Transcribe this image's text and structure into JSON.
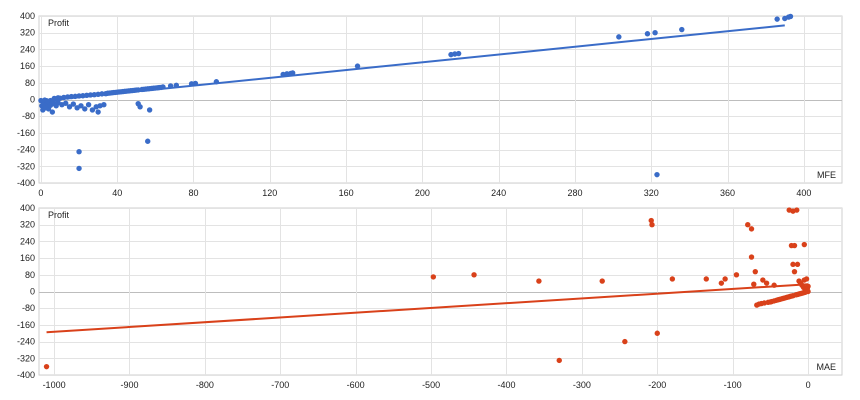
{
  "chart_data": [
    {
      "type": "scatter",
      "xlabel": "MFE",
      "ylabel": "Profit",
      "xlim": [
        -1,
        420
      ],
      "ylim": [
        -400,
        400
      ],
      "xticks": [
        0,
        40,
        80,
        120,
        160,
        200,
        240,
        280,
        320,
        360,
        400
      ],
      "yticks": [
        -400,
        -320,
        -240,
        -160,
        -80,
        0,
        80,
        160,
        240,
        320,
        400
      ],
      "grid": true,
      "point_color": "#3a6cc8",
      "line_color": "#3a6cc8",
      "trendline": {
        "x": [
          0,
          390
        ],
        "y": [
          -8,
          355
        ]
      },
      "points": [
        {
          "x": 0,
          "y": -5
        },
        {
          "x": 0.5,
          "y": -30
        },
        {
          "x": 1,
          "y": -50
        },
        {
          "x": 1,
          "y": -8
        },
        {
          "x": 1.5,
          "y": -15
        },
        {
          "x": 2,
          "y": -25
        },
        {
          "x": 2,
          "y": -3
        },
        {
          "x": 2.5,
          "y": -40
        },
        {
          "x": 3,
          "y": -6
        },
        {
          "x": 3,
          "y": -35
        },
        {
          "x": 3.5,
          "y": -20
        },
        {
          "x": 4,
          "y": -10
        },
        {
          "x": 4,
          "y": -45
        },
        {
          "x": 5,
          "y": -5
        },
        {
          "x": 5,
          "y": -28
        },
        {
          "x": 6,
          "y": -12
        },
        {
          "x": 6,
          "y": -60
        },
        {
          "x": 7,
          "y": -20
        },
        {
          "x": 7,
          "y": 5
        },
        {
          "x": 8,
          "y": 3
        },
        {
          "x": 8,
          "y": -30
        },
        {
          "x": 9,
          "y": 8
        },
        {
          "x": 9,
          "y": -15
        },
        {
          "x": 10,
          "y": 6
        },
        {
          "x": 11,
          "y": -25
        },
        {
          "x": 12,
          "y": 10
        },
        {
          "x": 13,
          "y": -18
        },
        {
          "x": 14,
          "y": 12
        },
        {
          "x": 15,
          "y": -35
        },
        {
          "x": 16,
          "y": 14
        },
        {
          "x": 17,
          "y": -22
        },
        {
          "x": 18,
          "y": 15
        },
        {
          "x": 19,
          "y": -40
        },
        {
          "x": 20,
          "y": 17
        },
        {
          "x": 20,
          "y": -250
        },
        {
          "x": 20,
          "y": -330
        },
        {
          "x": 21,
          "y": -30
        },
        {
          "x": 22,
          "y": 18
        },
        {
          "x": 23,
          "y": -45
        },
        {
          "x": 24,
          "y": 20
        },
        {
          "x": 25,
          "y": -25
        },
        {
          "x": 26,
          "y": 22
        },
        {
          "x": 27,
          "y": -50
        },
        {
          "x": 28,
          "y": 23
        },
        {
          "x": 29,
          "y": -35
        },
        {
          "x": 30,
          "y": 25
        },
        {
          "x": 30,
          "y": -60
        },
        {
          "x": 31,
          "y": -30
        },
        {
          "x": 32,
          "y": 27
        },
        {
          "x": 33,
          "y": -25
        },
        {
          "x": 34,
          "y": 28
        },
        {
          "x": 35,
          "y": 30
        },
        {
          "x": 36,
          "y": 31
        },
        {
          "x": 37,
          "y": 32
        },
        {
          "x": 38,
          "y": 33
        },
        {
          "x": 39,
          "y": 34
        },
        {
          "x": 40,
          "y": 35
        },
        {
          "x": 41,
          "y": 36
        },
        {
          "x": 42,
          "y": 37
        },
        {
          "x": 43,
          "y": 38
        },
        {
          "x": 44,
          "y": 39
        },
        {
          "x": 45,
          "y": 40
        },
        {
          "x": 46,
          "y": 41
        },
        {
          "x": 47,
          "y": 42
        },
        {
          "x": 48,
          "y": 43
        },
        {
          "x": 49,
          "y": 44
        },
        {
          "x": 50,
          "y": 45
        },
        {
          "x": 51,
          "y": 46
        },
        {
          "x": 51,
          "y": -20
        },
        {
          "x": 52,
          "y": -35
        },
        {
          "x": 53,
          "y": 48
        },
        {
          "x": 54,
          "y": 49
        },
        {
          "x": 55,
          "y": 50
        },
        {
          "x": 56,
          "y": 51
        },
        {
          "x": 56,
          "y": -200
        },
        {
          "x": 57,
          "y": -50
        },
        {
          "x": 57,
          "y": 52
        },
        {
          "x": 58,
          "y": 53
        },
        {
          "x": 59,
          "y": 54
        },
        {
          "x": 60,
          "y": 55
        },
        {
          "x": 61,
          "y": 56
        },
        {
          "x": 62,
          "y": 57
        },
        {
          "x": 63,
          "y": 58
        },
        {
          "x": 64,
          "y": 60
        },
        {
          "x": 68,
          "y": 65
        },
        {
          "x": 71,
          "y": 68
        },
        {
          "x": 79,
          "y": 75
        },
        {
          "x": 81,
          "y": 77
        },
        {
          "x": 92,
          "y": 85
        },
        {
          "x": 127,
          "y": 120
        },
        {
          "x": 129,
          "y": 123
        },
        {
          "x": 131,
          "y": 125
        },
        {
          "x": 132,
          "y": 127
        },
        {
          "x": 166,
          "y": 160
        },
        {
          "x": 215,
          "y": 215
        },
        {
          "x": 217,
          "y": 218
        },
        {
          "x": 219,
          "y": 220
        },
        {
          "x": 303,
          "y": 300
        },
        {
          "x": 318,
          "y": 315
        },
        {
          "x": 322,
          "y": 320
        },
        {
          "x": 323,
          "y": -360
        },
        {
          "x": 336,
          "y": 335
        },
        {
          "x": 386,
          "y": 385
        },
        {
          "x": 390,
          "y": 388
        },
        {
          "x": 392,
          "y": 395
        },
        {
          "x": 393,
          "y": 398
        }
      ]
    },
    {
      "type": "scatter",
      "xlabel": "MAE",
      "ylabel": "Profit",
      "xlim": [
        -1020,
        45
      ],
      "ylim": [
        -400,
        400
      ],
      "xticks": [
        -1000,
        -900,
        -800,
        -700,
        -600,
        -500,
        -400,
        -300,
        -200,
        -100,
        0
      ],
      "yticks": [
        -400,
        -320,
        -240,
        -160,
        -80,
        0,
        80,
        160,
        240,
        320,
        400
      ],
      "grid": true,
      "point_color": "#d9411a",
      "line_color": "#d9411a",
      "trendline": {
        "x": [
          -1010,
          0
        ],
        "y": [
          -195,
          35
        ]
      },
      "points": [
        {
          "x": -1010,
          "y": -360
        },
        {
          "x": -497,
          "y": 70
        },
        {
          "x": -443,
          "y": 80
        },
        {
          "x": -357,
          "y": 50
        },
        {
          "x": -330,
          "y": -330
        },
        {
          "x": -273,
          "y": 50
        },
        {
          "x": -243,
          "y": -240
        },
        {
          "x": -208,
          "y": 340
        },
        {
          "x": -207,
          "y": 320
        },
        {
          "x": -200,
          "y": -200
        },
        {
          "x": -180,
          "y": 60
        },
        {
          "x": -135,
          "y": 60
        },
        {
          "x": -115,
          "y": 40
        },
        {
          "x": -110,
          "y": 60
        },
        {
          "x": -95,
          "y": 80
        },
        {
          "x": -80,
          "y": 320
        },
        {
          "x": -75,
          "y": 300
        },
        {
          "x": -75,
          "y": 165
        },
        {
          "x": -72,
          "y": 35
        },
        {
          "x": -70,
          "y": 95
        },
        {
          "x": -68,
          "y": -65
        },
        {
          "x": -65,
          "y": -60
        },
        {
          "x": -62,
          "y": -58
        },
        {
          "x": -60,
          "y": 55
        },
        {
          "x": -58,
          "y": -55
        },
        {
          "x": -55,
          "y": 40
        },
        {
          "x": -53,
          "y": -52
        },
        {
          "x": -50,
          "y": -50
        },
        {
          "x": -48,
          "y": -48
        },
        {
          "x": -45,
          "y": 30
        },
        {
          "x": -45,
          "y": -45
        },
        {
          "x": -42,
          "y": -42
        },
        {
          "x": -40,
          "y": -40
        },
        {
          "x": -38,
          "y": -38
        },
        {
          "x": -36,
          "y": -36
        },
        {
          "x": -34,
          "y": -34
        },
        {
          "x": -32,
          "y": -32
        },
        {
          "x": -30,
          "y": -30
        },
        {
          "x": -28,
          "y": -28
        },
        {
          "x": -26,
          "y": -26
        },
        {
          "x": -25,
          "y": 390
        },
        {
          "x": -24,
          "y": -24
        },
        {
          "x": -22,
          "y": 220
        },
        {
          "x": -22,
          "y": -22
        },
        {
          "x": -20,
          "y": 130
        },
        {
          "x": -20,
          "y": 385
        },
        {
          "x": -20,
          "y": -20
        },
        {
          "x": -18,
          "y": 220
        },
        {
          "x": -18,
          "y": 95
        },
        {
          "x": -16,
          "y": -16
        },
        {
          "x": -15,
          "y": 390
        },
        {
          "x": -14,
          "y": 130
        },
        {
          "x": -14,
          "y": -14
        },
        {
          "x": -12,
          "y": 50
        },
        {
          "x": -12,
          "y": -12
        },
        {
          "x": -10,
          "y": 40
        },
        {
          "x": -10,
          "y": -10
        },
        {
          "x": -8,
          "y": 30
        },
        {
          "x": -8,
          "y": -8
        },
        {
          "x": -6,
          "y": 20
        },
        {
          "x": -6,
          "y": -6
        },
        {
          "x": -5,
          "y": 225
        },
        {
          "x": -5,
          "y": 55
        },
        {
          "x": -4,
          "y": 10
        },
        {
          "x": -4,
          "y": -4
        },
        {
          "x": -3,
          "y": 5
        },
        {
          "x": -2,
          "y": 0
        },
        {
          "x": -2,
          "y": 60
        },
        {
          "x": -1,
          "y": 15
        },
        {
          "x": 0,
          "y": 0
        },
        {
          "x": 0,
          "y": 25
        }
      ]
    }
  ]
}
